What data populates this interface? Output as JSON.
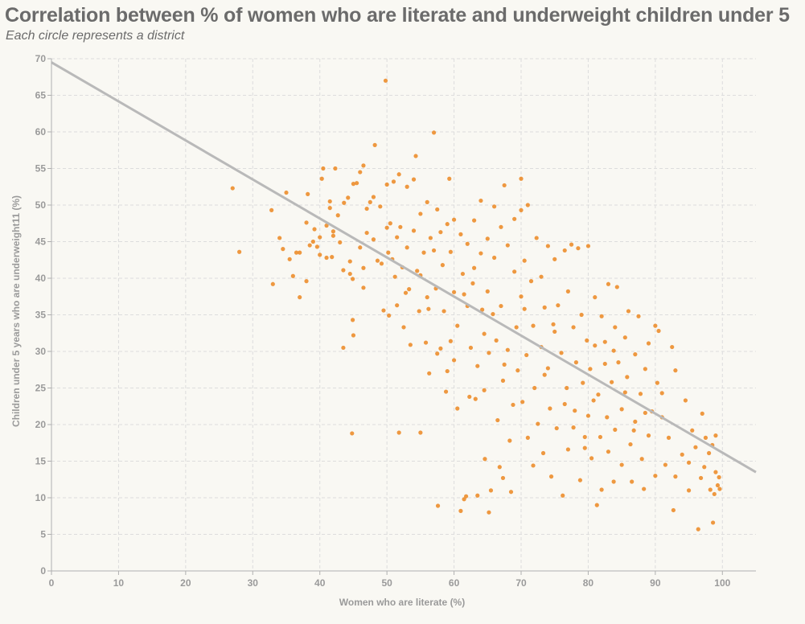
{
  "header": {
    "title": "Correlation between % of women who are literate and underweight children under 5",
    "subtitle": "Each circle represents a district"
  },
  "colors": {
    "background": "#f9f8f3",
    "point": "#ec8d2c",
    "trendline": "#b9b9b9",
    "grid": "#dddddd",
    "text": "#6b6b6b"
  },
  "chart_data": {
    "type": "scatter",
    "title": "Correlation between % of women who are literate and underweight children under 5",
    "subtitle": "Each circle represents a district",
    "xlabel": "Women who are literate (%)",
    "ylabel": "Children under 5 years who are underweight11 (%)",
    "xlim": [
      0,
      105
    ],
    "ylim": [
      0,
      70
    ],
    "x_ticks": [
      0,
      10,
      20,
      30,
      40,
      50,
      60,
      70,
      80,
      90,
      100
    ],
    "y_ticks": [
      0,
      5,
      10,
      15,
      20,
      25,
      30,
      35,
      40,
      45,
      50,
      55,
      60,
      65,
      70
    ],
    "grid": true,
    "trendline": {
      "x": [
        0,
        105
      ],
      "y": [
        69.5,
        13.5
      ]
    },
    "series": [
      {
        "points": [
          [
            27,
            52.3
          ],
          [
            28,
            43.6
          ],
          [
            32.8,
            49.3
          ],
          [
            33,
            39.2
          ],
          [
            34,
            45.5
          ],
          [
            34.5,
            44
          ],
          [
            35,
            51.7
          ],
          [
            35.5,
            42.6
          ],
          [
            36,
            40.3
          ],
          [
            36.5,
            43.5
          ],
          [
            37,
            43.5
          ],
          [
            37,
            37.4
          ],
          [
            38,
            47.6
          ],
          [
            38,
            39.6
          ],
          [
            38.2,
            51.5
          ],
          [
            38.5,
            44.5
          ],
          [
            39,
            45
          ],
          [
            39.2,
            46.7
          ],
          [
            39.6,
            44.3
          ],
          [
            40,
            45.6
          ],
          [
            40,
            43.2
          ],
          [
            40.3,
            53.6
          ],
          [
            40.5,
            55
          ],
          [
            41,
            42.8
          ],
          [
            41,
            47.2
          ],
          [
            41.5,
            50.5
          ],
          [
            41.5,
            49.6
          ],
          [
            41.8,
            42.9
          ],
          [
            42,
            46.4
          ],
          [
            42,
            45.8
          ],
          [
            42.3,
            55
          ],
          [
            42.7,
            48.6
          ],
          [
            43,
            44.9
          ],
          [
            43.5,
            41.1
          ],
          [
            43.6,
            50.3
          ],
          [
            44.2,
            51
          ],
          [
            44.5,
            40.6
          ],
          [
            44.5,
            42.3
          ],
          [
            44.9,
            39.9
          ],
          [
            45,
            52.9
          ],
          [
            44.9,
            34.3
          ],
          [
            45,
            32.2
          ],
          [
            44.8,
            18.8
          ],
          [
            45.5,
            53
          ],
          [
            46,
            54.5
          ],
          [
            46,
            44.2
          ],
          [
            46.5,
            55.4
          ],
          [
            46.5,
            41.4
          ],
          [
            47,
            46.2
          ],
          [
            47,
            49.5
          ],
          [
            47.5,
            50.4
          ],
          [
            48,
            51.1
          ],
          [
            48,
            45.3
          ],
          [
            48.2,
            58.2
          ],
          [
            48.6,
            42.4
          ],
          [
            49,
            49.8
          ],
          [
            49.2,
            42
          ],
          [
            49.5,
            35.6
          ],
          [
            49.8,
            67
          ],
          [
            50,
            52.8
          ],
          [
            50,
            46.9
          ],
          [
            50.2,
            43.5
          ],
          [
            50.5,
            47.5
          ],
          [
            50.8,
            42.6
          ],
          [
            51,
            53.2
          ],
          [
            51.2,
            40.2
          ],
          [
            51.5,
            45.6
          ],
          [
            51.5,
            36.3
          ],
          [
            51.8,
            54.2
          ],
          [
            52,
            47
          ],
          [
            51.8,
            18.9
          ],
          [
            52.3,
            41.5
          ],
          [
            52.5,
            33.3
          ],
          [
            53,
            52.5
          ],
          [
            53,
            44.2
          ],
          [
            53.3,
            38.5
          ],
          [
            53.5,
            30.9
          ],
          [
            54,
            53.5
          ],
          [
            54,
            46.5
          ],
          [
            54.3,
            56.7
          ],
          [
            54.5,
            41
          ],
          [
            54.8,
            35.5
          ],
          [
            55,
            40.4
          ],
          [
            55,
            48.8
          ],
          [
            55,
            18.9
          ],
          [
            55.5,
            43.5
          ],
          [
            56,
            50.4
          ],
          [
            56,
            37.4
          ],
          [
            56.3,
            27
          ],
          [
            56.5,
            45.5
          ],
          [
            57,
            59.9
          ],
          [
            57,
            43.8
          ],
          [
            57.3,
            38.6
          ],
          [
            57.5,
            49.4
          ],
          [
            57.6,
            8.9
          ],
          [
            58,
            46.3
          ],
          [
            58,
            30.4
          ],
          [
            58.3,
            41.8
          ],
          [
            58.5,
            35.5
          ],
          [
            59,
            47.4
          ],
          [
            59,
            27.3
          ],
          [
            59.3,
            53.6
          ],
          [
            59.5,
            43.6
          ],
          [
            60,
            48
          ],
          [
            60,
            38.1
          ],
          [
            60,
            28.8
          ],
          [
            60.5,
            22.2
          ],
          [
            60.5,
            33.5
          ],
          [
            61,
            46
          ],
          [
            61,
            8.2
          ],
          [
            61.3,
            40.6
          ],
          [
            61.5,
            9.8
          ],
          [
            61.8,
            10.2
          ],
          [
            62,
            44.7
          ],
          [
            62,
            36.2
          ],
          [
            62.3,
            23.8
          ],
          [
            62.5,
            30.5
          ],
          [
            63,
            47.9
          ],
          [
            63,
            41.4
          ],
          [
            63.2,
            23.5
          ],
          [
            63.5,
            28
          ],
          [
            63.5,
            10.3
          ],
          [
            64,
            50.6
          ],
          [
            64,
            43.4
          ],
          [
            64.2,
            35.7
          ],
          [
            64.5,
            24.7
          ],
          [
            64.6,
            15.3
          ],
          [
            65,
            45.4
          ],
          [
            65,
            38.2
          ],
          [
            65.2,
            29.8
          ],
          [
            65.2,
            8
          ],
          [
            65.5,
            11
          ],
          [
            66,
            49.8
          ],
          [
            66,
            42.8
          ],
          [
            66.3,
            31.5
          ],
          [
            66.5,
            20.6
          ],
          [
            66.8,
            14.2
          ],
          [
            67,
            47
          ],
          [
            67,
            36.2
          ],
          [
            67.3,
            26
          ],
          [
            67.3,
            12.7
          ],
          [
            67.5,
            52.7
          ],
          [
            68,
            44.5
          ],
          [
            68,
            30.2
          ],
          [
            68.3,
            17.8
          ],
          [
            68.5,
            10.8
          ],
          [
            69,
            48.1
          ],
          [
            69,
            40.9
          ],
          [
            69.3,
            33.3
          ],
          [
            69.5,
            27.4
          ],
          [
            70,
            49.3
          ],
          [
            70,
            53.6
          ],
          [
            70,
            37.5
          ],
          [
            70.2,
            23.1
          ],
          [
            70.5,
            42.4
          ],
          [
            70.8,
            29.5
          ],
          [
            71,
            18.2
          ],
          [
            71,
            50
          ],
          [
            71.5,
            39.6
          ],
          [
            71.8,
            33.5
          ],
          [
            72,
            25
          ],
          [
            72.3,
            45.5
          ],
          [
            72.5,
            20.1
          ],
          [
            73,
            40.2
          ],
          [
            73,
            30.6
          ],
          [
            73.3,
            16.1
          ],
          [
            73.5,
            36
          ],
          [
            74,
            44.4
          ],
          [
            74,
            27.7
          ],
          [
            74.3,
            22.2
          ],
          [
            74.5,
            12.9
          ],
          [
            75,
            42.6
          ],
          [
            75,
            32.7
          ],
          [
            75.3,
            19.5
          ],
          [
            75.5,
            36.3
          ],
          [
            76,
            29.8
          ],
          [
            76.2,
            10.3
          ],
          [
            76.5,
            43.8
          ],
          [
            76.8,
            25
          ],
          [
            77,
            38.2
          ],
          [
            77,
            16.6
          ],
          [
            77.5,
            44.6
          ],
          [
            77.8,
            33.3
          ],
          [
            78,
            21.9
          ],
          [
            78.2,
            28.5
          ],
          [
            78.5,
            44.1
          ],
          [
            78.8,
            12.4
          ],
          [
            79,
            35
          ],
          [
            79.2,
            25.7
          ],
          [
            79.5,
            18.3
          ],
          [
            79.8,
            31.5
          ],
          [
            80,
            44.4
          ],
          [
            80,
            21.2
          ],
          [
            80.3,
            27.6
          ],
          [
            80.5,
            15.4
          ],
          [
            81,
            37.4
          ],
          [
            81,
            30.8
          ],
          [
            81.3,
            9
          ],
          [
            81.5,
            24.1
          ],
          [
            81.8,
            18.3
          ],
          [
            82,
            34.8
          ],
          [
            82,
            11.1
          ],
          [
            82.5,
            28.3
          ],
          [
            82.8,
            21
          ],
          [
            83,
            16.3
          ],
          [
            83,
            39.2
          ],
          [
            83.5,
            25.8
          ],
          [
            83.8,
            12.2
          ],
          [
            84,
            33.3
          ],
          [
            84,
            19.3
          ],
          [
            84.3,
            38.8
          ],
          [
            84.5,
            28.5
          ],
          [
            85,
            22.1
          ],
          [
            85,
            14.5
          ],
          [
            85.5,
            31.9
          ],
          [
            85.8,
            26.5
          ],
          [
            86,
            35.5
          ],
          [
            86.3,
            17.3
          ],
          [
            86.5,
            12.2
          ],
          [
            87,
            29.6
          ],
          [
            87,
            20.4
          ],
          [
            87.5,
            34.8
          ],
          [
            87.8,
            24.2
          ],
          [
            88,
            15.3
          ],
          [
            88.3,
            11.2
          ],
          [
            88.5,
            27.6
          ],
          [
            89,
            31.1
          ],
          [
            89,
            18.5
          ],
          [
            89.5,
            21.8
          ],
          [
            90,
            33.5
          ],
          [
            90,
            13
          ],
          [
            90.3,
            25.7
          ],
          [
            90.5,
            32.8
          ],
          [
            91,
            21
          ],
          [
            91,
            24.3
          ],
          [
            91.5,
            14.5
          ],
          [
            92,
            18.2
          ],
          [
            92.5,
            30.6
          ],
          [
            92.7,
            8.3
          ],
          [
            93,
            27.4
          ],
          [
            93,
            12.9
          ],
          [
            94,
            15.9
          ],
          [
            94.5,
            23.3
          ],
          [
            95,
            11
          ],
          [
            95,
            14.8
          ],
          [
            95.5,
            19.2
          ],
          [
            96,
            16.9
          ],
          [
            96.4,
            5.7
          ],
          [
            96.8,
            12.7
          ],
          [
            97,
            21.5
          ],
          [
            97.3,
            14.2
          ],
          [
            97.5,
            18.2
          ],
          [
            98,
            16.1
          ],
          [
            98.2,
            11.1
          ],
          [
            98.5,
            17.2
          ],
          [
            98.6,
            6.6
          ],
          [
            98.8,
            10.5
          ],
          [
            99,
            18.5
          ],
          [
            99,
            13.5
          ],
          [
            99.3,
            11.7
          ],
          [
            99.5,
            12.8
          ],
          [
            99.6,
            11.2
          ],
          [
            43.5,
            30.5
          ],
          [
            46.5,
            38.7
          ],
          [
            50.3,
            34.9
          ],
          [
            52.8,
            38
          ],
          [
            55.8,
            31.2
          ],
          [
            58.8,
            24.5
          ],
          [
            62.8,
            39.3
          ],
          [
            65.8,
            35.1
          ],
          [
            68.8,
            22.7
          ],
          [
            71.8,
            14.4
          ],
          [
            74.8,
            33.7
          ],
          [
            77.8,
            19.6
          ],
          [
            80.8,
            23.3
          ],
          [
            83.8,
            30.1
          ],
          [
            86.8,
            19.2
          ],
          [
            64.5,
            32.4
          ],
          [
            67.5,
            28.2
          ],
          [
            70.5,
            35.8
          ],
          [
            73.5,
            26.8
          ],
          [
            76.5,
            22.8
          ],
          [
            79.5,
            16.8
          ],
          [
            82.5,
            31.3
          ],
          [
            85.5,
            24.4
          ],
          [
            88.5,
            21.6
          ],
          [
            61.5,
            37.8
          ],
          [
            59.5,
            31.4
          ],
          [
            57.5,
            29.7
          ],
          [
            56.2,
            35.8
          ]
        ]
      }
    ]
  }
}
